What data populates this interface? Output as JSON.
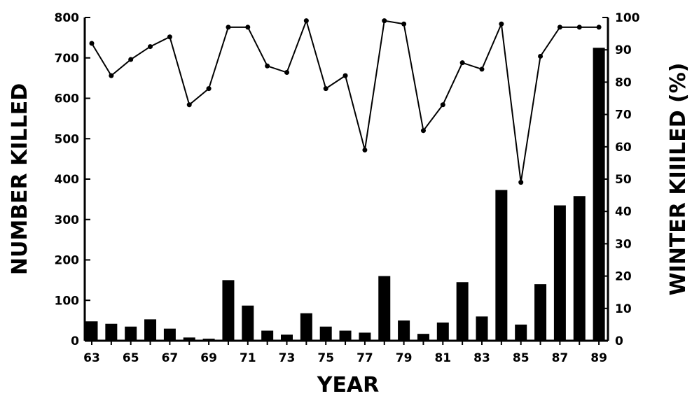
{
  "chart_data": {
    "type": "bar+line",
    "title": "",
    "xlabel": "YEAR",
    "ylabel": "NUMBER KILLED",
    "y2label": "WINTER KIIILED (%)",
    "ylim": [
      0,
      800
    ],
    "y2lim": [
      0,
      100
    ],
    "grid": false,
    "x_tick_labels": [
      "63",
      "65",
      "67",
      "69",
      "71",
      "73",
      "75",
      "77",
      "79",
      "81",
      "83",
      "85",
      "87",
      "89"
    ],
    "y_tick_labels": [
      "0",
      "100",
      "200",
      "300",
      "400",
      "500",
      "600",
      "700",
      "800"
    ],
    "y2_tick_labels": [
      "0",
      "10",
      "20",
      "30",
      "40",
      "50",
      "60",
      "70",
      "80",
      "90",
      "100"
    ],
    "x": [
      63,
      64,
      65,
      66,
      67,
      68,
      69,
      70,
      71,
      72,
      73,
      74,
      75,
      76,
      77,
      78,
      79,
      80,
      81,
      82,
      83,
      84,
      85,
      86,
      87,
      88,
      89
    ],
    "series": [
      {
        "kind": "bar",
        "axis": "left",
        "values": [
          48,
          42,
          35,
          53,
          30,
          8,
          5,
          150,
          87,
          25,
          15,
          68,
          35,
          25,
          20,
          160,
          50,
          17,
          45,
          145,
          60,
          373,
          40,
          140,
          335,
          358,
          725
        ],
        "color": "#000000"
      },
      {
        "kind": "line",
        "axis": "right",
        "values": [
          92,
          82,
          87,
          91,
          94,
          73,
          78,
          97,
          97,
          85,
          83,
          99,
          78,
          82,
          59,
          99,
          98,
          65,
          73,
          86,
          84,
          98,
          49,
          88,
          97,
          97,
          97
        ],
        "color": "#000000"
      }
    ]
  }
}
